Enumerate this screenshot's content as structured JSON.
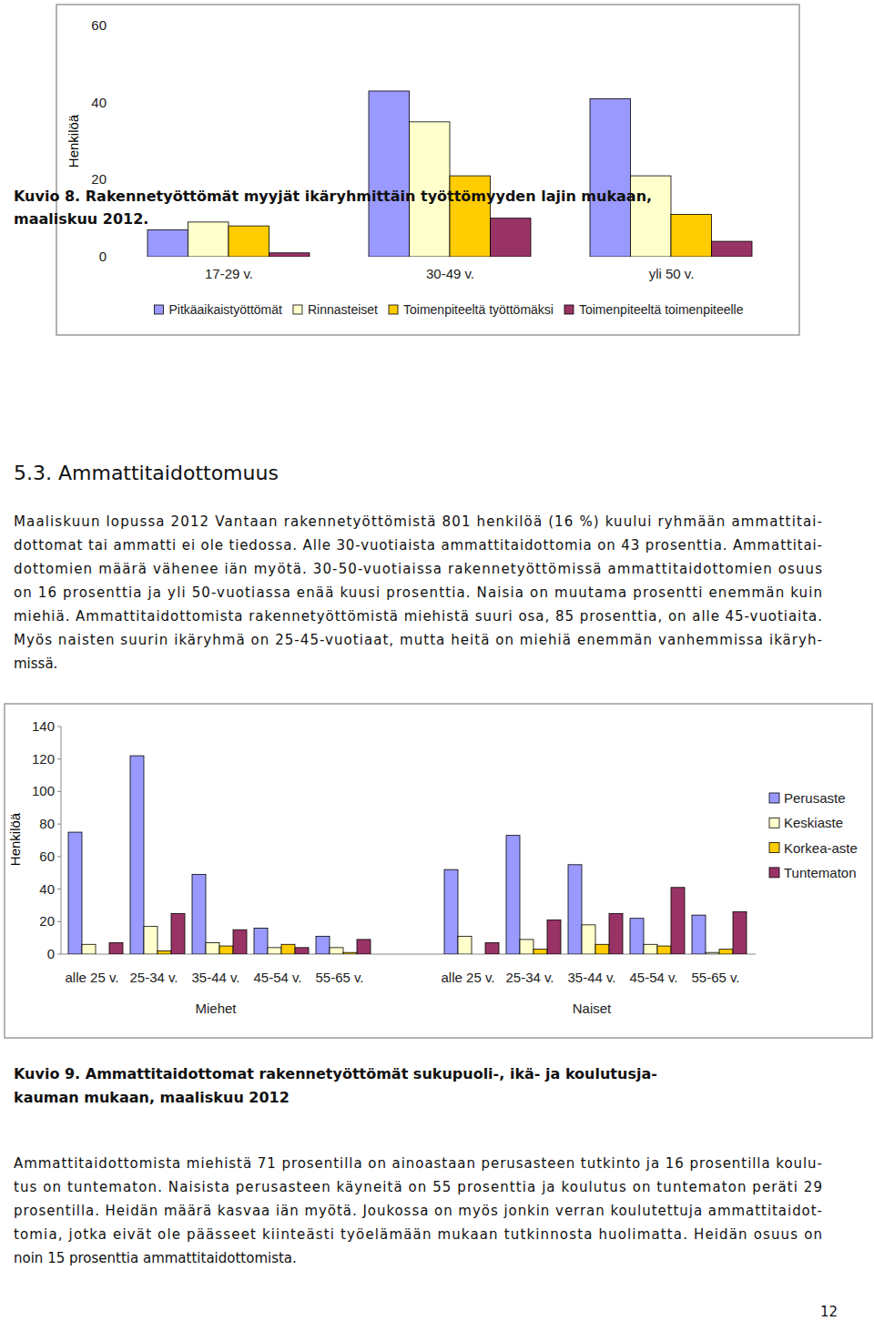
{
  "chart_data": [
    {
      "type": "bar",
      "ylabel": "Henkilöä",
      "categories": [
        "17-29 v.",
        "30-49 v.",
        "yli 50 v."
      ],
      "series": [
        {
          "name": "Pitkäaikaistyöttömät",
          "color": "#9999ff",
          "values": [
            7,
            43,
            41
          ]
        },
        {
          "name": "Rinnasteiset",
          "color": "#ffffcc",
          "values": [
            9,
            35,
            21
          ]
        },
        {
          "name": "Toimenpiteeltä työttömäksi",
          "color": "#ffcc00",
          "values": [
            8,
            21,
            11
          ]
        },
        {
          "name": "Toimenpiteeltä toimenpiteelle",
          "color": "#993366",
          "values": [
            1,
            10,
            4
          ]
        }
      ],
      "ylim": [
        0,
        60
      ],
      "yticks": [
        0,
        20,
        40,
        60
      ],
      "grid": false,
      "legend": "bottom"
    },
    {
      "type": "bar",
      "ylabel": "Henkilöä",
      "categories": [
        "alle 25 v.",
        "25-34 v.",
        "35-44 v.",
        "45-54 v.",
        "55-65 v.",
        "alle 25 v.",
        "25-34 v.",
        "35-44 v.",
        "45-54 v.",
        "55-65 v."
      ],
      "group_labels": [
        "Miehet",
        "Naiset"
      ],
      "series": [
        {
          "name": "Perusaste",
          "color": "#9999ff",
          "values": [
            75,
            122,
            49,
            16,
            11,
            52,
            73,
            55,
            22,
            24
          ]
        },
        {
          "name": "Keskiaste",
          "color": "#ffffcc",
          "values": [
            6,
            17,
            7,
            4,
            4,
            11,
            9,
            18,
            6,
            1
          ]
        },
        {
          "name": "Korkea-aste",
          "color": "#ffcc00",
          "values": [
            0,
            2,
            5,
            6,
            1,
            0,
            3,
            6,
            5,
            3
          ]
        },
        {
          "name": "Tuntematon",
          "color": "#993366",
          "values": [
            7,
            25,
            15,
            4,
            9,
            7,
            21,
            25,
            41,
            26
          ]
        }
      ],
      "ylim": [
        0,
        140
      ],
      "yticks": [
        0,
        20,
        40,
        60,
        80,
        100,
        120,
        140
      ],
      "grid": false,
      "legend": "right"
    }
  ],
  "document": {
    "figure_8_caption": [
      "Kuvio 8. Rakennetyöttömät myyjät ikäryhmittäin työttömyyden lajin mukaan,",
      "maaliskuu 2012."
    ],
    "heading": "5.3. Ammattitaidottomuus",
    "paragraph_1": [
      "Maaliskuun lopussa 2012 Vantaan rakennetyöttömistä 801 henkilöä (16 %) kuului ryhmään ammattitai-",
      "dottomat tai ammatti ei ole tiedossa. Alle 30-vuotiaista ammattitaidottomia on 43 prosenttia. Ammattitai-",
      "dottomien määrä vähenee iän myötä. 30-50-vuotiaissa rakennetyöttömissä ammattitaidottomien osuus",
      "on 16 prosenttia ja yli 50-vuotiassa enää kuusi prosenttia. Naisia on muutama prosentti enemmän kuin",
      "miehiä. Ammattitaidottomista rakennetyöttömistä miehistä suuri osa, 85 prosenttia, on alle 45-vuotiaita.",
      "Myös naisten suurin ikäryhmä on 25-45-vuotiaat, mutta heitä on miehiä enemmän vanhemmissa ikäryh-",
      "missä."
    ],
    "figure_9_caption": [
      "Kuvio 9. Ammattitaidottomat rakennetyöttömät sukupuoli-, ikä- ja koulutusja-",
      "kauman mukaan, maaliskuu 2012"
    ],
    "paragraph_2": [
      "Ammattitaidottomista miehistä 71 prosentilla on ainoastaan perusasteen tutkinto ja 16 prosentilla koulu-",
      "tus on tuntematon. Naisista perusasteen käyneitä on 55 prosenttia ja koulutus on tuntematon peräti 29",
      "prosentilla. Heidän määrä kasvaa iän myötä. Joukossa on myös jonkin verran koulutettuja ammattitaidot-",
      "tomia, jotka eivät ole päässeet kiinteästi työelämään mukaan tutkinnosta huolimatta. Heidän osuus on",
      "noin 15 prosenttia ammattitaidottomista."
    ],
    "page_number": "12"
  }
}
